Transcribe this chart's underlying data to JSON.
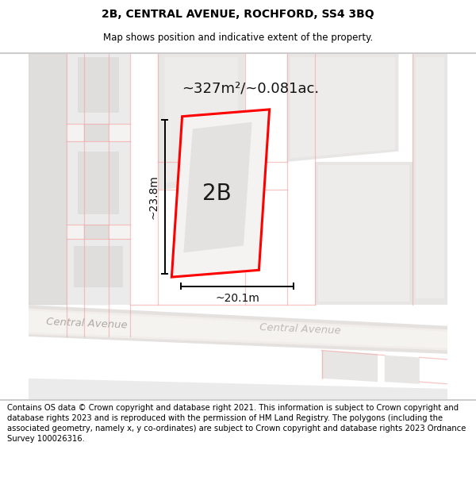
{
  "title": "2B, CENTRAL AVENUE, ROCHFORD, SS4 3BQ",
  "subtitle": "Map shows position and indicative extent of the property.",
  "footer": "Contains OS data © Crown copyright and database right 2021. This information is subject to Crown copyright and database rights 2023 and is reproduced with the permission of HM Land Registry. The polygons (including the associated geometry, namely x, y co-ordinates) are subject to Crown copyright and database rights 2023 Ordnance Survey 100026316.",
  "area_label": "~327m²/~0.081ac.",
  "plot_label": "2B",
  "dim_width": "~20.1m",
  "dim_height": "~23.8m",
  "bg_color": "#f5f3f1",
  "building_fill": "#e0dedd",
  "building_fill2": "#ebebeb",
  "plot_fill": "#f5f3f1",
  "plot_border": "#ff0000",
  "road_fill": "#e8e6e3",
  "road_stripe": "#f0eeed",
  "boundary_color": "#f5a0a0",
  "title_fontsize": 10,
  "subtitle_fontsize": 8.5,
  "footer_fontsize": 7.2,
  "road_label_color": "#aaaaaa",
  "road_label2_color": "#b0a8a0",
  "label_color": "#111111",
  "dim_color": "#111111"
}
